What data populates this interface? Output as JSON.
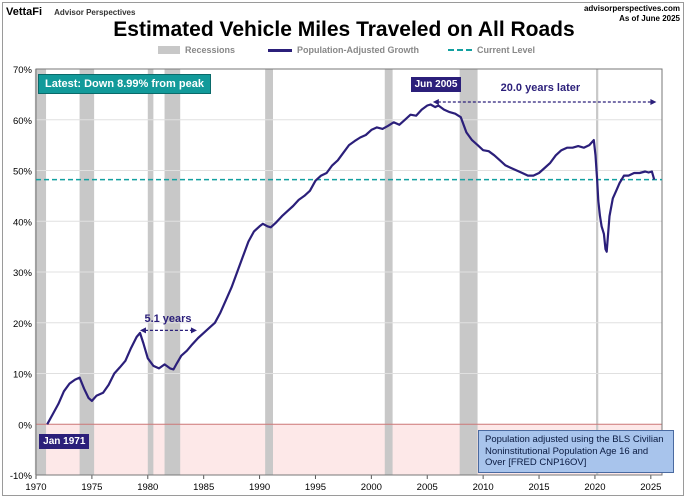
{
  "header": {
    "brand": "VettaFi",
    "brand_sub": "Advisor Perspectives",
    "site": "advisorperspectives.com",
    "as_of": "As of June 2025"
  },
  "chart_data": {
    "type": "line",
    "title": "Estimated Vehicle Miles Traveled on All Roads",
    "legend": [
      "Recessions",
      "Population-Adjusted Growth",
      "Current Level"
    ],
    "legend_placement": "top",
    "xlim": [
      1970,
      2026
    ],
    "ylim": [
      -10,
      70
    ],
    "x_ticks": [
      1970,
      1975,
      1980,
      1985,
      1990,
      1995,
      2000,
      2005,
      2010,
      2015,
      2020,
      2025
    ],
    "y_ticks": [
      -10,
      0,
      10,
      20,
      30,
      40,
      50,
      60,
      70
    ],
    "y_tick_labels": [
      "-10%",
      "0%",
      "10%",
      "20%",
      "30%",
      "40%",
      "50%",
      "60%",
      "70%"
    ],
    "grid": true,
    "colors": {
      "series": "#2b1f7a",
      "current_level": "#12a0a0",
      "recession": "#c8c8c8",
      "negative_zone": "#fde8e8"
    },
    "recessions": [
      [
        1969.9,
        1970.9
      ],
      [
        1973.9,
        1975.2
      ],
      [
        1980.0,
        1980.5
      ],
      [
        1981.5,
        1982.9
      ],
      [
        1990.5,
        1991.2
      ],
      [
        2001.2,
        2001.9
      ],
      [
        2007.9,
        2009.5
      ],
      [
        2020.1,
        2020.3
      ]
    ],
    "current_level": 48.2,
    "series": [
      {
        "name": "Population-Adjusted Growth",
        "points": [
          [
            1971.0,
            0.0
          ],
          [
            1971.5,
            2.0
          ],
          [
            1972.0,
            4.0
          ],
          [
            1972.5,
            6.5
          ],
          [
            1973.0,
            8.0
          ],
          [
            1973.5,
            8.8
          ],
          [
            1973.9,
            9.2
          ],
          [
            1974.3,
            7.0
          ],
          [
            1974.7,
            5.2
          ],
          [
            1975.0,
            4.6
          ],
          [
            1975.4,
            5.6
          ],
          [
            1976.0,
            6.2
          ],
          [
            1976.5,
            7.8
          ],
          [
            1977.0,
            10.0
          ],
          [
            1977.5,
            11.2
          ],
          [
            1978.0,
            12.5
          ],
          [
            1978.5,
            15.0
          ],
          [
            1979.0,
            17.2
          ],
          [
            1979.3,
            18.0
          ],
          [
            1979.6,
            16.0
          ],
          [
            1980.0,
            13.0
          ],
          [
            1980.5,
            11.5
          ],
          [
            1981.0,
            11.0
          ],
          [
            1981.5,
            11.8
          ],
          [
            1982.0,
            11.0
          ],
          [
            1982.3,
            10.8
          ],
          [
            1982.6,
            12.0
          ],
          [
            1983.0,
            13.5
          ],
          [
            1983.5,
            14.5
          ],
          [
            1984.0,
            15.8
          ],
          [
            1984.5,
            17.0
          ],
          [
            1985.0,
            18.0
          ],
          [
            1985.5,
            19.0
          ],
          [
            1986.0,
            20.0
          ],
          [
            1986.5,
            22.0
          ],
          [
            1987.0,
            24.5
          ],
          [
            1987.5,
            27.0
          ],
          [
            1988.0,
            30.0
          ],
          [
            1988.5,
            33.0
          ],
          [
            1989.0,
            36.0
          ],
          [
            1989.5,
            38.0
          ],
          [
            1990.0,
            39.0
          ],
          [
            1990.3,
            39.5
          ],
          [
            1990.7,
            39.0
          ],
          [
            1991.0,
            38.8
          ],
          [
            1991.5,
            39.8
          ],
          [
            1992.0,
            41.0
          ],
          [
            1992.5,
            42.0
          ],
          [
            1993.0,
            43.0
          ],
          [
            1993.5,
            44.2
          ],
          [
            1994.0,
            45.0
          ],
          [
            1994.5,
            46.0
          ],
          [
            1995.0,
            48.0
          ],
          [
            1995.5,
            49.0
          ],
          [
            1996.0,
            49.5
          ],
          [
            1996.5,
            51.0
          ],
          [
            1997.0,
            52.0
          ],
          [
            1997.5,
            53.5
          ],
          [
            1998.0,
            55.0
          ],
          [
            1998.5,
            55.8
          ],
          [
            1999.0,
            56.5
          ],
          [
            1999.5,
            57.0
          ],
          [
            2000.0,
            58.0
          ],
          [
            2000.5,
            58.5
          ],
          [
            2001.0,
            58.2
          ],
          [
            2001.5,
            58.8
          ],
          [
            2002.0,
            59.5
          ],
          [
            2002.5,
            59.0
          ],
          [
            2003.0,
            60.0
          ],
          [
            2003.5,
            61.0
          ],
          [
            2004.0,
            60.8
          ],
          [
            2004.5,
            62.0
          ],
          [
            2005.0,
            62.8
          ],
          [
            2005.3,
            63.0
          ],
          [
            2005.7,
            62.5
          ],
          [
            2006.0,
            62.8
          ],
          [
            2006.5,
            62.0
          ],
          [
            2007.0,
            61.5
          ],
          [
            2007.5,
            61.2
          ],
          [
            2008.0,
            60.5
          ],
          [
            2008.5,
            57.5
          ],
          [
            2009.0,
            56.0
          ],
          [
            2009.5,
            55.0
          ],
          [
            2010.0,
            54.0
          ],
          [
            2010.5,
            53.8
          ],
          [
            2011.0,
            53.0
          ],
          [
            2011.5,
            52.0
          ],
          [
            2012.0,
            51.0
          ],
          [
            2012.5,
            50.5
          ],
          [
            2013.0,
            50.0
          ],
          [
            2013.5,
            49.5
          ],
          [
            2014.0,
            49.0
          ],
          [
            2014.5,
            49.0
          ],
          [
            2015.0,
            49.5
          ],
          [
            2015.5,
            50.5
          ],
          [
            2016.0,
            51.5
          ],
          [
            2016.5,
            53.0
          ],
          [
            2017.0,
            54.0
          ],
          [
            2017.5,
            54.5
          ],
          [
            2018.0,
            54.5
          ],
          [
            2018.5,
            54.8
          ],
          [
            2019.0,
            54.5
          ],
          [
            2019.5,
            55.0
          ],
          [
            2019.9,
            56.0
          ],
          [
            2020.05,
            53.0
          ],
          [
            2020.2,
            48.0
          ],
          [
            2020.3,
            44.0
          ],
          [
            2020.45,
            41.0
          ],
          [
            2020.6,
            39.0
          ],
          [
            2020.8,
            37.5
          ],
          [
            2020.95,
            34.5
          ],
          [
            2021.05,
            34.0
          ],
          [
            2021.3,
            41.0
          ],
          [
            2021.6,
            44.5
          ],
          [
            2021.9,
            46.0
          ],
          [
            2022.2,
            47.5
          ],
          [
            2022.6,
            49.0
          ],
          [
            2023.0,
            49.0
          ],
          [
            2023.5,
            49.5
          ],
          [
            2024.0,
            49.5
          ],
          [
            2024.5,
            49.8
          ],
          [
            2024.8,
            49.6
          ],
          [
            2025.1,
            49.8
          ],
          [
            2025.3,
            48.2
          ]
        ]
      }
    ],
    "annotations": {
      "latest": "Latest: Down 8.99% from peak",
      "start_label": "Jan 1971",
      "peak_label": "Jun 2005",
      "span_1": {
        "label": "5.1 years",
        "from": 1979.3,
        "to": 1984.4,
        "y": 18.5
      },
      "span_2": {
        "label": "20.0 years later",
        "from": 2005.5,
        "to": 2025.5,
        "y": 63.5
      },
      "note": "Population adjusted using the BLS Civilian Noninstitutional Population Age 16 and Over  [FRED CNP16OV]"
    }
  }
}
